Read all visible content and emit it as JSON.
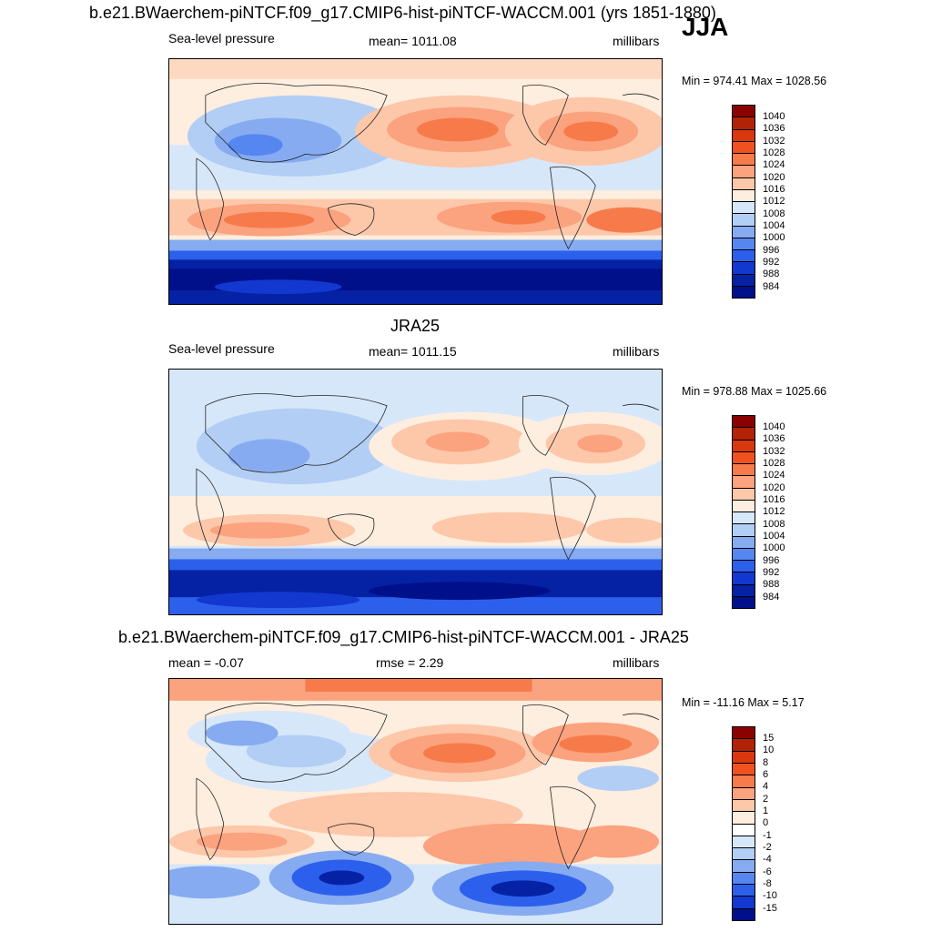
{
  "panel1": {
    "title": "b.e21.BWaerchem-piNTCF.f09_g17.CMIP6-hist-piNTCF-WACCM.001 (yrs 1851-1880)",
    "season": "JJA",
    "left": "Sea-level pressure",
    "center": "mean= 1011.08",
    "right": "millibars",
    "minmax": "Min = 974.41 Max = 1028.56"
  },
  "panel2": {
    "title": "JRA25",
    "left": "Sea-level pressure",
    "center": "mean= 1011.15",
    "right": "millibars",
    "minmax": "Min = 978.88 Max = 1025.66"
  },
  "panel3": {
    "title": "b.e21.BWaerchem-piNTCF.f09_g17.CMIP6-hist-piNTCF-WACCM.001 - JRA25",
    "left": "mean =  -0.07",
    "center": "rmse =   2.29",
    "right": "millibars",
    "minmax": "Min = -11.16 Max =   5.17"
  },
  "colorbar_abs": {
    "labels": [
      "1040",
      "1036",
      "1032",
      "1028",
      "1024",
      "1020",
      "1016",
      "1012",
      "1008",
      "1004",
      "1000",
      "996",
      "992",
      "988",
      "984"
    ],
    "colors": [
      "#8b0000",
      "#b22207",
      "#d9380f",
      "#f0521f",
      "#f77a4a",
      "#fba27e",
      "#fdc7aa",
      "#feeedf",
      "#d7e7fa",
      "#b2cef5",
      "#86abf1",
      "#5686f0",
      "#2c60ec",
      "#1238d0",
      "#0522a5",
      "#00108a"
    ]
  },
  "colorbar_diff": {
    "labels": [
      "15",
      "10",
      "8",
      "6",
      "4",
      "2",
      "1",
      "0",
      "-1",
      "-2",
      "-4",
      "-6",
      "-8",
      "-10",
      "-15"
    ],
    "colors": [
      "#8b0000",
      "#b22207",
      "#d9380f",
      "#f0521f",
      "#f77a4a",
      "#fba27e",
      "#fdc7aa",
      "#feeedf",
      "#ffffff",
      "#d7e7fa",
      "#b2cef5",
      "#86abf1",
      "#5686f0",
      "#2c60ec",
      "#1238d0",
      "#00108a"
    ]
  }
}
